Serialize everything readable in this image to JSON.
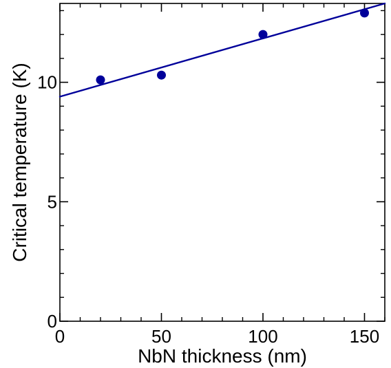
{
  "chart_data": {
    "type": "scatter",
    "title": "",
    "xlabel": "NbN thickness (nm)",
    "ylabel": "Critical temperature (K)",
    "xlim": [
      0,
      160
    ],
    "ylim": [
      0,
      13.3
    ],
    "xticks": [
      0,
      50,
      100,
      150
    ],
    "yticks": [
      0,
      5,
      10
    ],
    "xtick_labels": [
      "0",
      "50",
      "100",
      "150"
    ],
    "ytick_labels": [
      "0",
      "5",
      "10"
    ],
    "x_minor_step": 10,
    "y_minor_step": 1,
    "grid": false,
    "series": [
      {
        "type": "scatter",
        "color": "#00009a",
        "points": [
          {
            "x": 20,
            "y": 10.1
          },
          {
            "x": 50,
            "y": 10.3
          },
          {
            "x": 100,
            "y": 12.0
          },
          {
            "x": 150,
            "y": 12.9
          }
        ]
      },
      {
        "type": "line",
        "color": "#00009a",
        "points": [
          {
            "x": 0,
            "y": 9.4
          },
          {
            "x": 160,
            "y": 13.3
          }
        ]
      }
    ]
  }
}
